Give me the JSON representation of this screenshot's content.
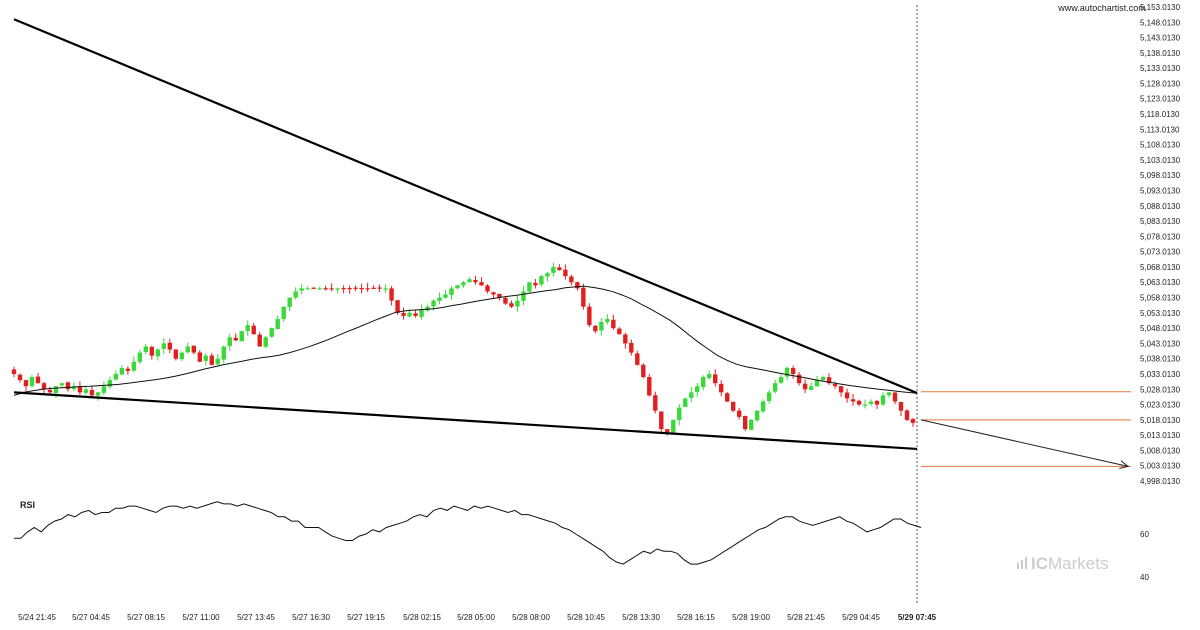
{
  "site": "www.autochartist.com",
  "watermark": {
    "prefix": "IC",
    "suffix": "Markets"
  },
  "chart_data": {
    "type": "candlestick",
    "title": "",
    "y_ticks": [
      "5,153.0130",
      "5,148.0130",
      "5,143.0130",
      "5,138.0130",
      "5,133.0130",
      "5,128.0130",
      "5,123.0130",
      "5,118.0130",
      "5,113.0130",
      "5,108.0130",
      "5,103.0130",
      "5,098.0130",
      "5,093.0130",
      "5,088.0130",
      "5,083.0130",
      "5,078.0130",
      "5,073.0130",
      "5,068.0130",
      "5,063.0130",
      "5,058.0130",
      "5,053.0130",
      "5,048.0130",
      "5,043.0130",
      "5,038.0130",
      "5,033.0130",
      "5,028.0130",
      "5,023.0130",
      "5,018.0130",
      "5,013.0130",
      "5,008.0130",
      "5,003.0130",
      "4,998.0130"
    ],
    "x_ticks": [
      "5/24 21:45",
      "5/27 04:45",
      "5/27 08:15",
      "5/27 11:00",
      "5/27 13:45",
      "5/27 16:30",
      "5/27 19:15",
      "5/28 02:15",
      "5/28 05:00",
      "5/28 08:00",
      "5/28 10:45",
      "5/28 13:30",
      "5/28 16:15",
      "5/28 19:00",
      "5/28 21:45",
      "5/29 04:45",
      "5/29 07:45"
    ],
    "last_x_label": "5/29 07:45",
    "ylim": [
      4998.013,
      5153.013
    ],
    "colors": {
      "up": "#39d939",
      "down": "#e02020",
      "ma": "#111111",
      "trend": "#000000",
      "level": "#e8743b",
      "rsi": "#111111",
      "grid_v": "#555555"
    },
    "close_series": [
      5033,
      5031,
      5029,
      5032,
      5030,
      5028,
      5027,
      5029,
      5030,
      5028,
      5029,
      5027,
      5028,
      5026,
      5027,
      5029,
      5031,
      5033,
      5035,
      5034,
      5037,
      5040,
      5042,
      5039,
      5041,
      5043,
      5041,
      5038,
      5040,
      5042,
      5040,
      5037,
      5039,
      5036,
      5038,
      5042,
      5045,
      5044,
      5047,
      5049,
      5046,
      5042,
      5045,
      5048,
      5051,
      5055,
      5058,
      5060,
      5061,
      5061,
      5061,
      5061,
      5061,
      5061,
      5061,
      5061,
      5061,
      5061,
      5061,
      5061,
      5061,
      5061,
      5061,
      5057,
      5053,
      5052,
      5053,
      5052,
      5054,
      5055,
      5057,
      5058,
      5059,
      5061,
      5062,
      5063,
      5064,
      5063,
      5062,
      5060,
      5059,
      5058,
      5056,
      5055,
      5057,
      5060,
      5063,
      5062,
      5065,
      5066,
      5068,
      5067,
      5065,
      5063,
      5061,
      5055,
      5049,
      5047,
      5050,
      5051,
      5048,
      5046,
      5043,
      5040,
      5036,
      5032,
      5026,
      5021,
      5015,
      5014,
      5018,
      5022,
      5025,
      5027,
      5029,
      5032,
      5033,
      5030,
      5027,
      5024,
      5021,
      5019,
      5015,
      5018,
      5021,
      5024,
      5027,
      5030,
      5032,
      5035,
      5033,
      5030,
      5028,
      5029,
      5031,
      5032,
      5030,
      5029,
      5027,
      5025,
      5024,
      5023,
      5023,
      5024,
      5023,
      5026,
      5027,
      5024,
      5021,
      5018,
      5017
    ],
    "ma_series": [
      5026,
      5027,
      5027.5,
      5028,
      5028.3,
      5028.5,
      5028.7,
      5028.9,
      5029,
      5029.2,
      5029.4,
      5029.6,
      5030,
      5030.4,
      5030.8,
      5031.2,
      5031.7,
      5032.3,
      5033,
      5033.8,
      5034.6,
      5035.3,
      5036,
      5036.6,
      5037.2,
      5037.8,
      5038.3,
      5038.7,
      5039.2,
      5040,
      5040.9,
      5041.9,
      5043,
      5044.2,
      5045.5,
      5046.8,
      5048,
      5049.3,
      5050.6,
      5051.8,
      5053,
      5053.6,
      5053.9,
      5054.1,
      5054.3,
      5054.7,
      5055.3,
      5055.8,
      5056.4,
      5057,
      5057.5,
      5058,
      5058.4,
      5058.8,
      5059.3,
      5059.8,
      5060.2,
      5060.6,
      5061.2,
      5061.5,
      5061.7,
      5061.3,
      5060.7,
      5059.9,
      5058.8,
      5057.5,
      5055.8,
      5054.2,
      5052.4,
      5050.6,
      5048.3,
      5045.8,
      5043.4,
      5041.2,
      5039.1,
      5037.5,
      5036.2,
      5035.4,
      5034.8,
      5034.2,
      5033.6,
      5033,
      5032.4,
      5031.9,
      5031.3,
      5030.7,
      5030.2,
      5029.7,
      5029.2,
      5028.8,
      5028.4,
      5028,
      5027.7,
      5027.3,
      5027,
      5026.7
    ],
    "annotations": {
      "upper_trendline": {
        "from": [
          "5/24 21:45",
          5149.0
        ],
        "to": [
          "5/29 07:45",
          5026.8
        ]
      },
      "lower_trendline": {
        "from": [
          "5/24 21:45",
          5027.0
        ],
        "to": [
          "5/29 07:45",
          5008.5
        ]
      },
      "levels": [
        5027.2,
        5018.0,
        5002.8
      ],
      "projection": {
        "from": 5018.0,
        "to": 5002.8
      }
    },
    "rsi": {
      "label": "RSI",
      "ticks": [
        "60",
        "40"
      ],
      "values": [
        58,
        58,
        61,
        63,
        61,
        64,
        66,
        67,
        69,
        68,
        70,
        71,
        69,
        70,
        70,
        72,
        72,
        73,
        73,
        72,
        71,
        70,
        72,
        73,
        73,
        72,
        73,
        72,
        73,
        74,
        75,
        74,
        74,
        73,
        74,
        73,
        72,
        71,
        70,
        68,
        68,
        66,
        66,
        63,
        63,
        63,
        61,
        59,
        58,
        57,
        57,
        59,
        60,
        62,
        61,
        63,
        64,
        65,
        66,
        68,
        69,
        68,
        71,
        72,
        71,
        73,
        72,
        71,
        73,
        72,
        73,
        72,
        71,
        70,
        71,
        69,
        69,
        68,
        67,
        66,
        65,
        63,
        62,
        60,
        58,
        56,
        54,
        52,
        49,
        47,
        46,
        48,
        50,
        52,
        51,
        53,
        52,
        52,
        51,
        48,
        46,
        46,
        47,
        48,
        50,
        52,
        54,
        56,
        58,
        60,
        62,
        63,
        65,
        67,
        68,
        68,
        66,
        65,
        64,
        65,
        66,
        67,
        68,
        66,
        65,
        63,
        61,
        62,
        63,
        65,
        67,
        67,
        65,
        64,
        63
      ]
    }
  }
}
